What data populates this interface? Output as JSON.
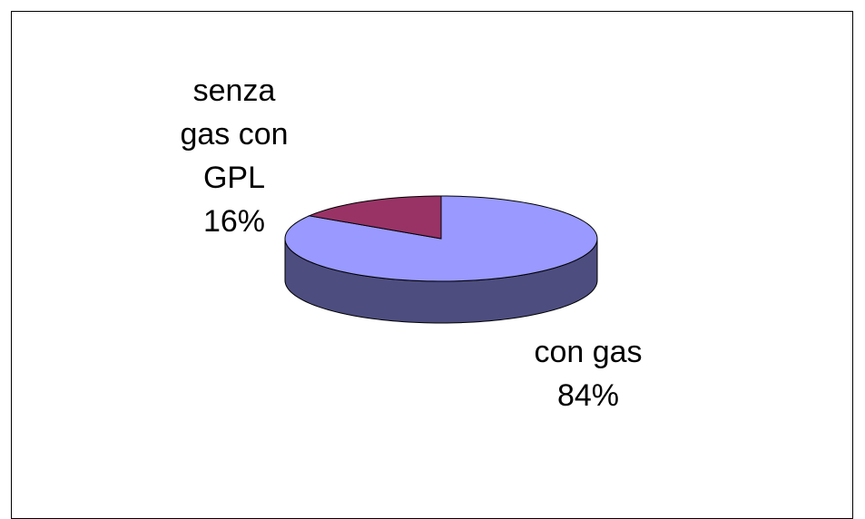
{
  "chart_data": {
    "type": "pie",
    "pie_3d": true,
    "categories": [
      "con gas",
      "senza gas con GPL"
    ],
    "values": [
      84,
      16
    ],
    "value_labels": [
      "84%",
      "16%"
    ],
    "colors": [
      "#9999ff",
      "#993366"
    ],
    "side_colors": [
      "#4d4d80",
      "#66203f"
    ]
  }
}
